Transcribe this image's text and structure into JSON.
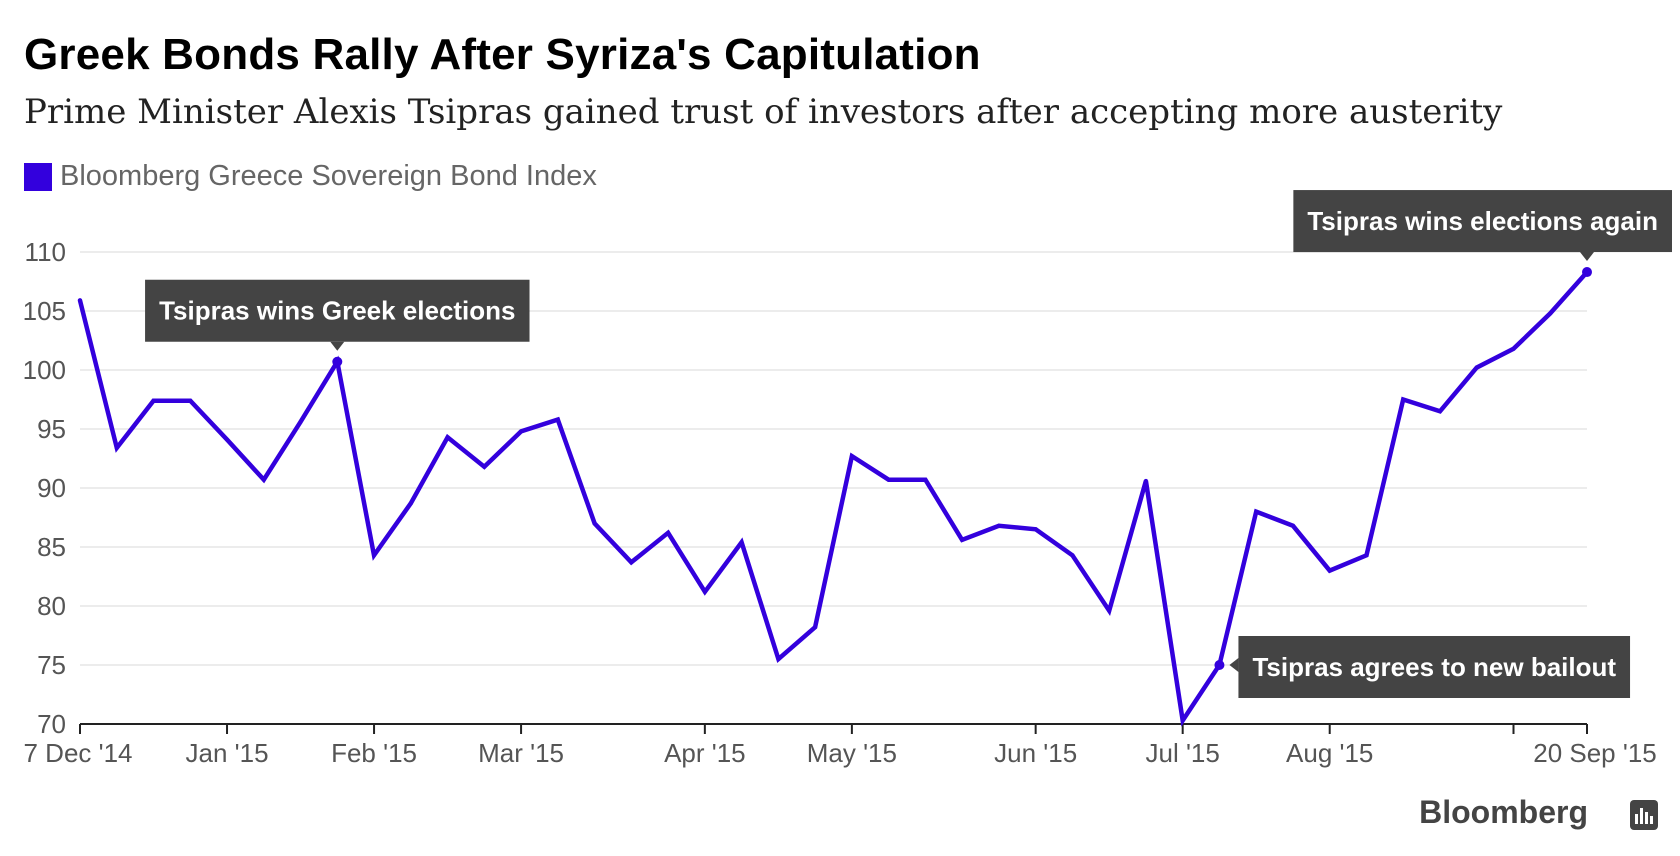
{
  "chart_data": {
    "type": "line",
    "title": "Greek Bonds Rally After Syriza's Capitulation",
    "subtitle": "Prime Minister Alexis Tsipras gained trust of investors after accepting more austerity",
    "series": [
      {
        "name": "Bloomberg Greece Sovereign Bond Index",
        "color": "#3300dd",
        "values": [
          105.9,
          93.4,
          97.4,
          97.4,
          94.1,
          90.7,
          95.6,
          100.7,
          84.3,
          88.7,
          94.3,
          91.8,
          94.8,
          95.8,
          87.0,
          83.7,
          86.2,
          81.2,
          85.4,
          75.5,
          78.2,
          92.7,
          90.7,
          90.7,
          85.6,
          86.8,
          86.5,
          84.3,
          79.6,
          90.6,
          70.3,
          75.0,
          88.0,
          86.8,
          83.0,
          84.3,
          97.5,
          96.5,
          100.2,
          101.8,
          104.8,
          108.3
        ]
      }
    ],
    "x_tick_labels": [
      "7 Dec '14",
      "Jan '15",
      "Feb '15",
      "Mar '15",
      "Apr '15",
      "May '15",
      "Jun '15",
      "Jul '15",
      "Aug '15",
      "20 Sep '15"
    ],
    "x_tick_indices": [
      0,
      4,
      8,
      12,
      17,
      21,
      26,
      30,
      34,
      41
    ],
    "extra_tick_indices": [
      39
    ],
    "y_ticks": [
      70,
      75,
      80,
      85,
      90,
      95,
      100,
      105,
      110
    ],
    "ylim": [
      70,
      110
    ],
    "grid": true,
    "xlabel": "",
    "ylabel": "",
    "annotations": [
      {
        "text": "Tsipras wins Greek elections",
        "index": 7,
        "value": 100.7,
        "placement": "above"
      },
      {
        "text": "Tsipras agrees to new bailout",
        "index": 31,
        "value": 75.0,
        "placement": "right"
      },
      {
        "text": "Tsipras wins elections again",
        "index": 41,
        "value": 108.3,
        "placement": "above"
      }
    ],
    "legend": {
      "label": "Bloomberg Greece Sovereign Bond Index",
      "position": "top-left"
    }
  },
  "source": {
    "brand": "Bloomberg"
  },
  "colors": {
    "line": "#3300dd",
    "grid": "#e6e6e6",
    "axis": "#222222",
    "tick_label": "#555555",
    "callout_bg": "#444444",
    "callout_text": "#ffffff"
  }
}
